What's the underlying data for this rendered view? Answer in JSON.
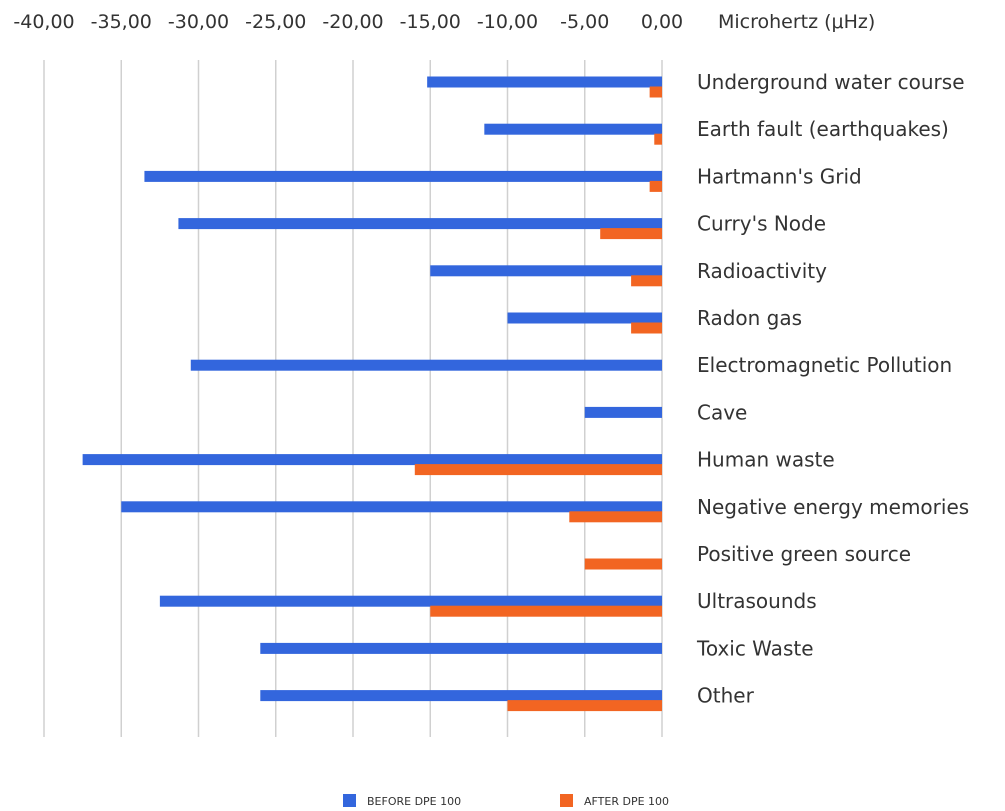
{
  "chart_data": {
    "type": "bar",
    "orientation": "horizontal",
    "unit_label": "Microhertz (μHz)",
    "xlim": [
      -40,
      0
    ],
    "x_ticks": [
      -40,
      -35,
      -30,
      -25,
      -20,
      -15,
      -10,
      -5,
      0
    ],
    "x_tick_labels": [
      "-40,00",
      "-35,00",
      "-30,00",
      "-25,00",
      "-20,00",
      "-15,00",
      "-10,00",
      "-5,00",
      "0,00"
    ],
    "grid": true,
    "legend_position": "bottom",
    "categories": [
      "Underground water course",
      "Earth fault (earthquakes)",
      "Hartmann's Grid",
      "Curry's Node",
      "Radioactivity",
      "Radon  gas",
      "Electromagnetic Pollution",
      "Cave",
      "Human waste",
      "Negative energy memories",
      "Positive green source",
      "Ultrasounds",
      "Toxic Waste",
      "Other"
    ],
    "series": [
      {
        "name": "BEFORE DPE 100",
        "color": "#3366dd",
        "values": [
          -15.2,
          -11.5,
          -33.5,
          -31.3,
          -15,
          -10,
          -30.5,
          -5,
          -37.5,
          -35,
          0,
          -32.5,
          -26,
          -26
        ]
      },
      {
        "name": "AFTER DPE 100",
        "color": "#f26522",
        "values": [
          -0.8,
          -0.5,
          -0.8,
          -4,
          -2,
          -2,
          0,
          0,
          -16,
          -6,
          -5,
          -15,
          0,
          -10
        ]
      }
    ]
  }
}
